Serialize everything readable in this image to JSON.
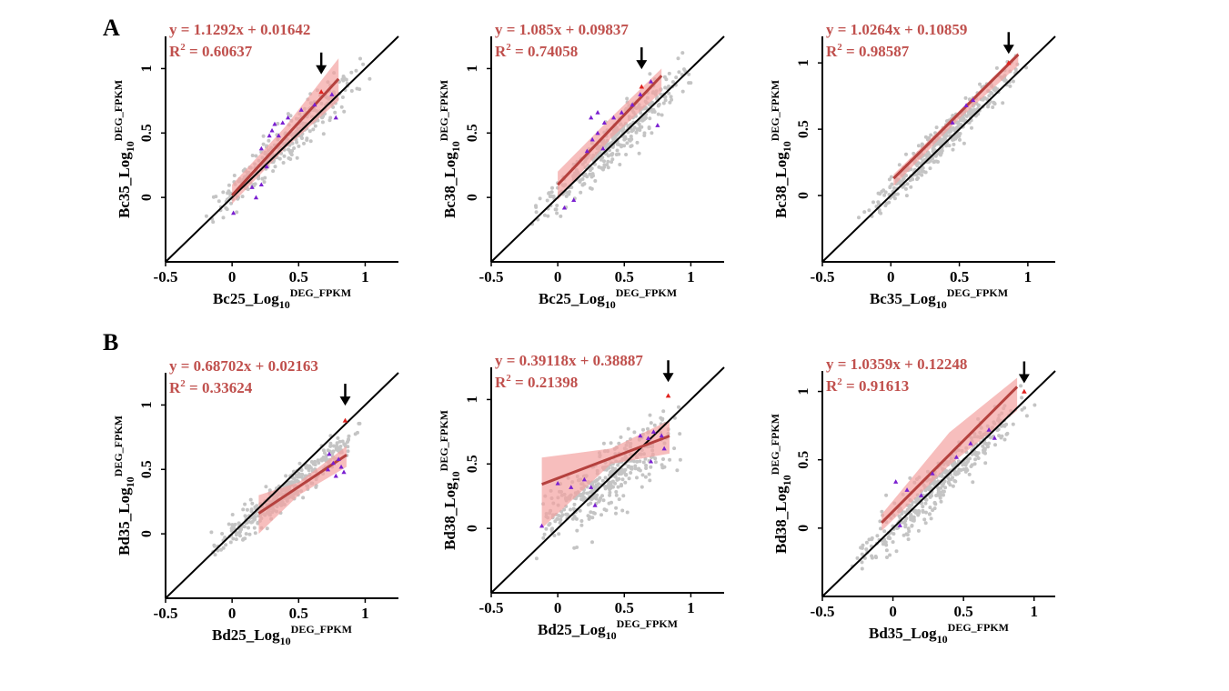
{
  "figure": {
    "panel_labels": [
      "A",
      "B"
    ],
    "colors": {
      "points": "#c4c4c4",
      "fit_line": "#b5413e",
      "confidence_band": "#f4a3a1",
      "equation_text": "#c0504d",
      "identity_line": "#000000",
      "deg_markers": "#7a1fd1",
      "highlight_marker": "#e0221e",
      "arrow": "#000000"
    }
  },
  "chart_data": [
    {
      "type": "scatter",
      "row": "A",
      "equation": "y = 1.1292x + 0.01642",
      "r2_label": "R",
      "r2_sup": "2",
      "r2_value": " = 0.60637",
      "xlabel_main": "Bc25_Log",
      "xlabel_sub": "10",
      "xlabel_sup": "DEG_FPKM",
      "ylabel_main": "Bc35_Log",
      "ylabel_sub": "10",
      "ylabel_sup": "DEG_FPKM",
      "xlim": [
        -0.5,
        1.25
      ],
      "ylim": [
        -0.5,
        1.25
      ],
      "xticks": [
        "-0.5",
        "0",
        "0.5",
        "1"
      ],
      "yticks": [
        "0",
        "0.5",
        "1"
      ],
      "fit": {
        "slope": 1.1292,
        "intercept": 0.01642,
        "x_range": [
          0.0,
          0.8
        ]
      },
      "band": [
        [
          0.0,
          -0.05,
          0.1
        ],
        [
          0.4,
          0.38,
          0.55
        ],
        [
          0.8,
          0.75,
          1.08
        ]
      ],
      "point_cloud": {
        "x_range": [
          -0.2,
          1.05
        ],
        "slope": 1.0,
        "intercept": 0.02,
        "spread": 0.07,
        "n": 320,
        "seed": 11
      },
      "deg_points": [
        [
          0.22,
          0.38
        ],
        [
          0.28,
          0.48
        ],
        [
          0.3,
          0.52
        ],
        [
          0.38,
          0.58
        ],
        [
          0.32,
          0.57
        ],
        [
          0.42,
          0.62
        ],
        [
          0.52,
          0.68
        ],
        [
          0.62,
          0.72
        ],
        [
          0.78,
          0.62
        ],
        [
          0.75,
          0.8
        ],
        [
          0.22,
          0.1
        ],
        [
          0.15,
          0.08
        ],
        [
          0.18,
          0.0
        ],
        [
          0.01,
          -0.12
        ],
        [
          0.26,
          0.24
        ],
        [
          0.35,
          0.48
        ]
      ],
      "highlight": [
        0.67,
        0.82
      ],
      "arrow_at": [
        0.67,
        1.04
      ]
    },
    {
      "type": "scatter",
      "row": "A",
      "equation": "y = 1.085x + 0.09837",
      "r2_label": "R",
      "r2_sup": "2",
      "r2_value": " = 0.74058",
      "xlabel_main": "Bc25_Log",
      "xlabel_sub": "10",
      "xlabel_sup": "DEG_FPKM",
      "ylabel_main": "Bc38_Log",
      "ylabel_sub": "10",
      "ylabel_sup": "DEG_FPKM",
      "xlim": [
        -0.5,
        1.25
      ],
      "ylim": [
        -0.5,
        1.25
      ],
      "xticks": [
        "-0.5",
        "0",
        "0.5",
        "1"
      ],
      "yticks": [
        "0",
        "0.5",
        "1"
      ],
      "fit": {
        "slope": 1.085,
        "intercept": 0.09837,
        "x_range": [
          0.0,
          0.78
        ]
      },
      "band": [
        [
          0.0,
          -0.02,
          0.2
        ],
        [
          0.4,
          0.46,
          0.62
        ],
        [
          0.78,
          0.82,
          1.0
        ]
      ],
      "point_cloud": {
        "x_range": [
          -0.2,
          1.05
        ],
        "slope": 1.0,
        "intercept": 0.0,
        "spread": 0.08,
        "n": 360,
        "seed": 23
      },
      "deg_points": [
        [
          0.22,
          0.36
        ],
        [
          0.26,
          0.45
        ],
        [
          0.3,
          0.5
        ],
        [
          0.35,
          0.58
        ],
        [
          0.42,
          0.62
        ],
        [
          0.48,
          0.66
        ],
        [
          0.56,
          0.72
        ],
        [
          0.62,
          0.8
        ],
        [
          0.7,
          0.9
        ],
        [
          0.75,
          0.56
        ],
        [
          0.25,
          0.62
        ],
        [
          0.3,
          0.66
        ],
        [
          0.05,
          -0.08
        ],
        [
          0.12,
          -0.02
        ],
        [
          0.34,
          0.38
        ]
      ],
      "highlight": [
        0.63,
        0.86
      ],
      "arrow_at": [
        0.63,
        1.08
      ]
    },
    {
      "type": "scatter",
      "row": "A",
      "equation": "y = 1.0264x + 0.10859",
      "r2_label": "R",
      "r2_sup": "2",
      "r2_value": " = 0.98587",
      "xlabel_main": "Bc35_Log",
      "xlabel_sub": "10",
      "xlabel_sup": "DEG_FPKM",
      "ylabel_main": "Bc38_Log",
      "ylabel_sub": "10",
      "ylabel_sup": "DEG_FPKM",
      "xlim": [
        -0.5,
        1.2
      ],
      "ylim": [
        -0.5,
        1.2
      ],
      "xticks": [
        "-0.5",
        "0",
        "0.5",
        "1"
      ],
      "yticks": [
        "0",
        "0.5",
        "1"
      ],
      "fit": {
        "slope": 1.0264,
        "intercept": 0.10859,
        "x_range": [
          0.02,
          0.93
        ]
      },
      "band": [
        [
          0.02,
          0.07,
          0.16
        ],
        [
          0.5,
          0.58,
          0.64
        ],
        [
          0.93,
          0.98,
          1.08
        ]
      ],
      "point_cloud": {
        "x_range": [
          -0.25,
          1.0
        ],
        "slope": 1.0,
        "intercept": 0.04,
        "spread": 0.06,
        "n": 380,
        "seed": 37
      },
      "deg_points": [
        [
          0.45,
          0.55
        ],
        [
          0.55,
          0.68
        ],
        [
          0.6,
          0.72
        ]
      ],
      "highlight": [
        0.86,
        1.0
      ],
      "arrow_at": [
        0.86,
        1.15
      ]
    },
    {
      "type": "scatter",
      "row": "B",
      "equation": "y = 0.68702x + 0.02163",
      "r2_label": "R",
      "r2_sup": "2",
      "r2_value": " = 0.33624",
      "xlabel_main": "Bd25_Log",
      "xlabel_sub": "10",
      "xlabel_sup": "DEG_FPKM",
      "ylabel_main": "Bd35_Log",
      "ylabel_sub": "10",
      "ylabel_sup": "DEG_FPKM",
      "xlim": [
        -0.5,
        1.25
      ],
      "ylim": [
        -0.5,
        1.25
      ],
      "xticks": [
        "-0.5",
        "0",
        "0.5",
        "1"
      ],
      "yticks": [
        "0",
        "0.5",
        "1"
      ],
      "fit": {
        "slope": 0.68702,
        "intercept": 0.02163,
        "x_range": [
          0.2,
          0.86
        ]
      },
      "band": [
        [
          0.2,
          0.0,
          0.3
        ],
        [
          0.5,
          0.3,
          0.4
        ],
        [
          0.86,
          0.52,
          0.68
        ]
      ],
      "point_cloud": {
        "x_range": [
          -0.2,
          1.0
        ],
        "slope": 0.82,
        "intercept": 0.0,
        "spread": 0.06,
        "n": 360,
        "seed": 51
      },
      "deg_points": [
        [
          0.72,
          0.5
        ],
        [
          0.76,
          0.55
        ],
        [
          0.8,
          0.58
        ],
        [
          0.78,
          0.45
        ],
        [
          0.82,
          0.52
        ],
        [
          0.73,
          0.62
        ],
        [
          0.84,
          0.48
        ]
      ],
      "highlight": [
        0.85,
        0.88
      ],
      "arrow_at": [
        0.85,
        1.08
      ]
    },
    {
      "type": "scatter",
      "row": "B",
      "equation": "y = 0.39118x + 0.38887",
      "r2_label": "R",
      "r2_sup": "2",
      "r2_value": " = 0.21398",
      "xlabel_main": "Bd25_Log",
      "xlabel_sub": "10",
      "xlabel_sup": "DEG_FPKM",
      "ylabel_main": "Bd38_Log",
      "ylabel_sub": "10",
      "ylabel_sup": "DEG_FPKM",
      "xlim": [
        -0.5,
        1.25
      ],
      "ylim": [
        -0.5,
        1.25
      ],
      "xticks": [
        "-0.5",
        "0",
        "0.5",
        "1"
      ],
      "yticks": [
        "0",
        "0.5",
        "1"
      ],
      "fit": {
        "slope": 0.39118,
        "intercept": 0.38887,
        "x_range": [
          -0.12,
          0.84
        ]
      },
      "band": [
        [
          -0.12,
          0.0,
          0.55
        ],
        [
          0.4,
          0.5,
          0.62
        ],
        [
          0.84,
          0.58,
          0.84
        ]
      ],
      "point_cloud": {
        "x_range": [
          -0.15,
          0.95
        ],
        "slope": 0.68,
        "intercept": 0.12,
        "spread": 0.12,
        "n": 380,
        "seed": 67
      },
      "deg_points": [
        [
          0.0,
          0.35
        ],
        [
          0.1,
          0.32
        ],
        [
          0.2,
          0.38
        ],
        [
          0.25,
          0.32
        ],
        [
          0.62,
          0.72
        ],
        [
          0.68,
          0.7
        ],
        [
          0.72,
          0.75
        ],
        [
          0.78,
          0.72
        ],
        [
          0.8,
          0.62
        ],
        [
          0.7,
          0.52
        ],
        [
          -0.12,
          0.02
        ],
        [
          0.28,
          0.18
        ]
      ],
      "highlight": [
        0.83,
        1.03
      ],
      "arrow_at": [
        0.83,
        1.22
      ]
    },
    {
      "type": "scatter",
      "row": "B",
      "equation": "y = 1.0359x + 0.12248",
      "r2_label": "R",
      "r2_sup": "2",
      "r2_value": " = 0.91613",
      "xlabel_main": "Bd35_Log",
      "xlabel_sub": "10",
      "xlabel_sup": "DEG_FPKM",
      "ylabel_main": "Bd38_Log",
      "ylabel_sub": "10",
      "ylabel_sup": "DEG_FPKM",
      "xlim": [
        -0.5,
        1.15
      ],
      "ylim": [
        -0.5,
        1.15
      ],
      "xticks": [
        "-0.5",
        "0",
        "0.5",
        "1"
      ],
      "yticks": [
        "0",
        "0.5",
        "1"
      ],
      "fit": {
        "slope": 1.0359,
        "intercept": 0.12248,
        "x_range": [
          -0.08,
          0.88
        ]
      },
      "band": [
        [
          -0.08,
          -0.02,
          0.1
        ],
        [
          0.4,
          0.46,
          0.7
        ],
        [
          0.88,
          0.86,
          1.1
        ]
      ],
      "point_cloud": {
        "x_range": [
          -0.3,
          1.0
        ],
        "slope": 1.0,
        "intercept": 0.0,
        "spread": 0.08,
        "n": 420,
        "seed": 83
      },
      "deg_points": [
        [
          0.02,
          0.34
        ],
        [
          0.1,
          0.28
        ],
        [
          0.2,
          0.24
        ],
        [
          0.28,
          0.4
        ],
        [
          0.45,
          0.52
        ],
        [
          0.55,
          0.62
        ],
        [
          0.68,
          0.72
        ],
        [
          0.05,
          0.02
        ],
        [
          0.72,
          0.66
        ]
      ],
      "highlight": [
        0.93,
        1.0
      ],
      "arrow_at": [
        0.93,
        1.14
      ]
    }
  ]
}
